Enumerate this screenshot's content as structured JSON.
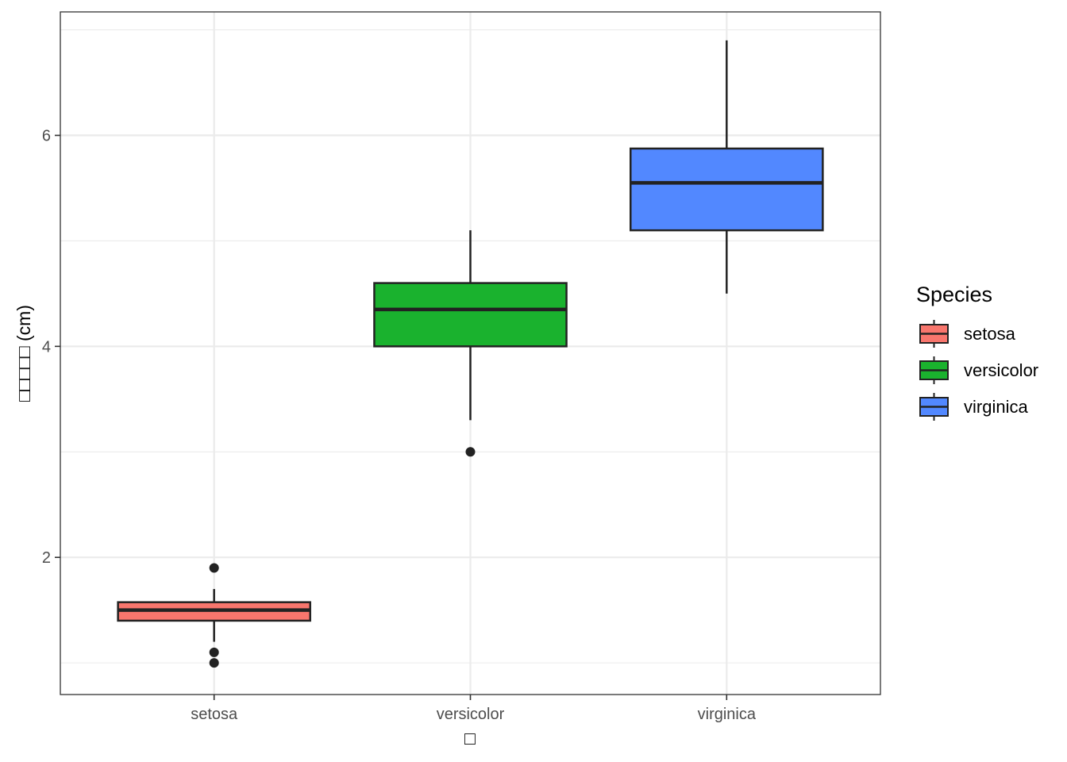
{
  "chart_data": {
    "type": "boxplot",
    "title": "",
    "xlabel": "□",
    "ylabel": "□□□□□ (cm)",
    "categories": [
      "setosa",
      "versicolor",
      "virginica"
    ],
    "ylim": [
      0.7,
      7.17
    ],
    "yticks": [
      2,
      4,
      6
    ],
    "grid": true,
    "boxes": [
      {
        "category": "setosa",
        "whisker_low": 1.2,
        "q1": 1.4,
        "median": 1.5,
        "q3": 1.575,
        "whisker_high": 1.7,
        "outliers": [
          1.9,
          1.1,
          1.0
        ]
      },
      {
        "category": "versicolor",
        "whisker_low": 3.3,
        "q1": 4.0,
        "median": 4.35,
        "q3": 4.6,
        "whisker_high": 5.1,
        "outliers": [
          3.0
        ]
      },
      {
        "category": "virginica",
        "whisker_low": 4.5,
        "q1": 5.1,
        "median": 5.55,
        "q3": 5.875,
        "whisker_high": 6.9,
        "outliers": []
      }
    ],
    "legend": {
      "title": "Species",
      "position": "right",
      "entries": [
        {
          "label": "setosa",
          "color": "#F8766D"
        },
        {
          "label": "versicolor",
          "color": "#1AB22E"
        },
        {
          "label": "virginica",
          "color": "#5288FF"
        }
      ]
    }
  }
}
